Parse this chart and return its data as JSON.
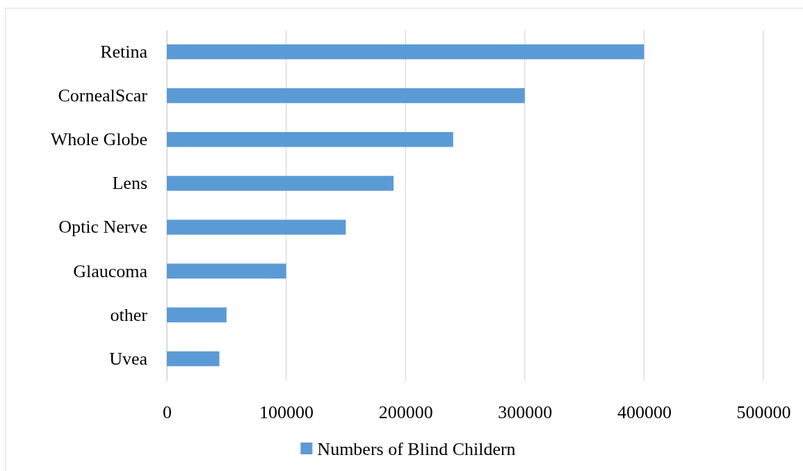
{
  "chart_data": {
    "type": "bar",
    "orientation": "horizontal",
    "categories": [
      "Retina",
      "CornealScar",
      "Whole Globe",
      "Lens",
      "Optic Nerve",
      "Glaucoma",
      "other",
      "Uvea"
    ],
    "series": [
      {
        "name": "Numbers of Blind Childern",
        "color": "#5b9bd5",
        "values": [
          400000,
          300000,
          240000,
          190000,
          150000,
          100000,
          50000,
          44000
        ]
      }
    ],
    "xlim": [
      0,
      500000
    ],
    "xticks": [
      0,
      100000,
      200000,
      300000,
      400000,
      500000
    ],
    "grid": "x",
    "legend": "bottom"
  }
}
